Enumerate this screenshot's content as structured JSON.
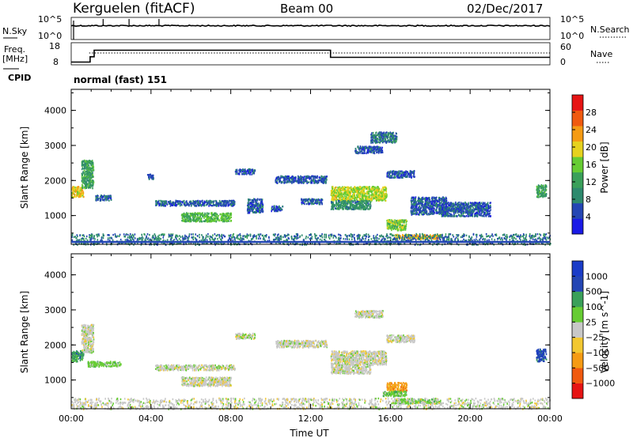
{
  "header": {
    "station": "Kerguelen (fitACF)",
    "beam": "Beam 00",
    "date": "02/Dec/2017"
  },
  "nsky_panel": {
    "left_label": "N.Sky",
    "left_ticks": [
      "10^5",
      "10^0"
    ],
    "right_label": "N.Search",
    "right_ticks": [
      "10^5",
      "10^0"
    ]
  },
  "freq_panel": {
    "label_line1": "Freq.",
    "label_line2": "[MHz]",
    "left_ticks": [
      "18",
      "8"
    ],
    "right_ticks": [
      "60",
      "0"
    ],
    "right_label": "Nave",
    "cpid_label": "CPID",
    "cpid_value": "normal (fast) 151"
  },
  "colors": {
    "power": [
      "#1a1ae6",
      "#2446b4",
      "#2e8a6e",
      "#3aa05a",
      "#66cc33",
      "#e6d21e",
      "#f59b14",
      "#f05a0f",
      "#e61414"
    ],
    "velocity": [
      "#e61414",
      "#f05a0f",
      "#f59b14",
      "#f2c832",
      "#c8c8c8",
      "#66cc33",
      "#3aa05a",
      "#2446b4",
      "#1a3cc8"
    ],
    "ground_scatter": "#c8c8c8"
  },
  "chart_data": [
    {
      "type": "heatmap",
      "name": "power",
      "xlabel": "",
      "ylabel": "Slant Range [km]",
      "xlim_hours": [
        0,
        24
      ],
      "ylim_km": [
        180,
        4600
      ],
      "y_ticks": [
        "1000",
        "2000",
        "3000",
        "4000"
      ],
      "colorbar": {
        "label": "Power [dB]",
        "range": [
          0,
          32
        ],
        "ticks": [
          "4",
          "8",
          "12",
          "16",
          "20",
          "24",
          "28"
        ]
      },
      "regions": [
        {
          "t0": 0.0,
          "t1": 0.6,
          "r0": 1550,
          "r1": 1850,
          "value": 20
        },
        {
          "t0": 0.5,
          "t1": 1.1,
          "r0": 1800,
          "r1": 2600,
          "value": 12
        },
        {
          "t0": 1.2,
          "t1": 2.0,
          "r0": 1450,
          "r1": 1600,
          "value": 6
        },
        {
          "t0": 3.8,
          "t1": 4.1,
          "r0": 2050,
          "r1": 2200,
          "value": 6
        },
        {
          "t0": 4.2,
          "t1": 8.2,
          "r0": 1300,
          "r1": 1450,
          "value": 6
        },
        {
          "t0": 5.5,
          "t1": 8.0,
          "r0": 850,
          "r1": 1100,
          "value": 14
        },
        {
          "t0": 8.2,
          "t1": 9.2,
          "r0": 2200,
          "r1": 2350,
          "value": 6
        },
        {
          "t0": 8.8,
          "t1": 9.6,
          "r0": 1100,
          "r1": 1500,
          "value": 6
        },
        {
          "t0": 10.0,
          "t1": 10.6,
          "r0": 1150,
          "r1": 1300,
          "value": 6
        },
        {
          "t0": 10.2,
          "t1": 12.8,
          "r0": 1950,
          "r1": 2150,
          "value": 6
        },
        {
          "t0": 11.5,
          "t1": 12.6,
          "r0": 1350,
          "r1": 1500,
          "value": 6
        },
        {
          "t0": 13.0,
          "t1": 15.8,
          "r0": 1450,
          "r1": 1850,
          "value": 18
        },
        {
          "t0": 13.0,
          "t1": 15.0,
          "r0": 1200,
          "r1": 1450,
          "value": 10
        },
        {
          "t0": 14.2,
          "t1": 15.6,
          "r0": 2800,
          "r1": 3000,
          "value": 6
        },
        {
          "t0": 15.0,
          "t1": 16.3,
          "r0": 3100,
          "r1": 3400,
          "value": 8
        },
        {
          "t0": 15.8,
          "t1": 17.2,
          "r0": 2100,
          "r1": 2300,
          "value": 6
        },
        {
          "t0": 15.8,
          "t1": 16.8,
          "r0": 600,
          "r1": 900,
          "value": 16
        },
        {
          "t0": 16.2,
          "t1": 18.5,
          "r0": 350,
          "r1": 480,
          "value": 22
        },
        {
          "t0": 17.0,
          "t1": 18.8,
          "r0": 1050,
          "r1": 1550,
          "value": 6
        },
        {
          "t0": 18.5,
          "t1": 21.0,
          "r0": 1000,
          "r1": 1400,
          "value": 6
        },
        {
          "t0": 23.3,
          "t1": 23.8,
          "r0": 1550,
          "r1": 1900,
          "value": 12
        },
        {
          "t0": 0.0,
          "t1": 24.0,
          "r0": 190,
          "r1": 500,
          "value": 8
        }
      ]
    },
    {
      "type": "heatmap",
      "name": "velocity",
      "xlabel": "Time UT",
      "ylabel": "Slant Range [km]",
      "xlim_hours": [
        0,
        24
      ],
      "ylim_km": [
        180,
        4600
      ],
      "x_ticks": [
        "00:00",
        "04:00",
        "08:00",
        "12:00",
        "16:00",
        "20:00",
        "00:00"
      ],
      "y_ticks": [
        "1000",
        "2000",
        "3000",
        "4000"
      ],
      "colorbar": {
        "label": "Velocity [m s^-1]",
        "ticks": [
          "1000",
          "500",
          "100",
          "25",
          "−25",
          "−100",
          "−500",
          "−1000"
        ]
      },
      "regions": [
        {
          "t0": 0.0,
          "t1": 0.6,
          "r0": 1550,
          "r1": 1850,
          "value": 6
        },
        {
          "t0": 0.5,
          "t1": 1.1,
          "r0": 1800,
          "r1": 2600,
          "value": 4
        },
        {
          "t0": 0.8,
          "t1": 2.5,
          "r0": 1400,
          "r1": 1550,
          "value": 5
        },
        {
          "t0": 4.2,
          "t1": 8.2,
          "r0": 1300,
          "r1": 1450,
          "value": 4
        },
        {
          "t0": 5.5,
          "t1": 8.0,
          "r0": 850,
          "r1": 1100,
          "value": 4
        },
        {
          "t0": 8.2,
          "t1": 9.2,
          "r0": 2200,
          "r1": 2350,
          "value": 4
        },
        {
          "t0": 10.2,
          "t1": 12.8,
          "r0": 1950,
          "r1": 2150,
          "value": 4
        },
        {
          "t0": 13.0,
          "t1": 15.8,
          "r0": 1450,
          "r1": 1850,
          "value": 4
        },
        {
          "t0": 13.0,
          "t1": 15.0,
          "r0": 1200,
          "r1": 1450,
          "value": 4
        },
        {
          "t0": 14.2,
          "t1": 15.6,
          "r0": 2800,
          "r1": 3000,
          "value": 4
        },
        {
          "t0": 15.8,
          "t1": 17.2,
          "r0": 2100,
          "r1": 2300,
          "value": 4
        },
        {
          "t0": 15.8,
          "t1": 16.8,
          "r0": 700,
          "r1": 950,
          "value": 2
        },
        {
          "t0": 15.6,
          "t1": 16.8,
          "r0": 550,
          "r1": 700,
          "value": 5
        },
        {
          "t0": 16.2,
          "t1": 18.5,
          "r0": 350,
          "r1": 480,
          "value": 5
        },
        {
          "t0": 23.3,
          "t1": 23.8,
          "r0": 1550,
          "r1": 1900,
          "value": 7
        },
        {
          "t0": 0.0,
          "t1": 24.0,
          "r0": 190,
          "r1": 500,
          "value": 4
        }
      ]
    }
  ]
}
